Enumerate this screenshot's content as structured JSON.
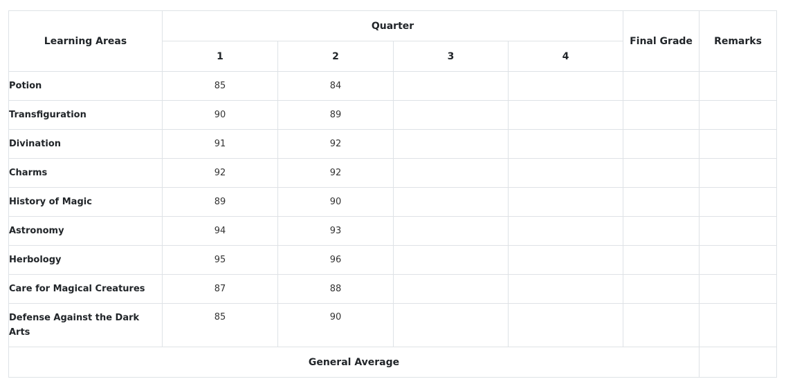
{
  "table": {
    "headers": {
      "learning_areas": "Learning Areas",
      "quarter": "Quarter",
      "quarters": [
        "1",
        "2",
        "3",
        "4"
      ],
      "final_grade": "Final Grade",
      "remarks": "Remarks"
    },
    "rows": [
      {
        "subject": "Potion",
        "q1": "85",
        "q2": "84",
        "q3": "",
        "q4": "",
        "final": "",
        "remarks": ""
      },
      {
        "subject": "Transfiguration",
        "q1": "90",
        "q2": "89",
        "q3": "",
        "q4": "",
        "final": "",
        "remarks": ""
      },
      {
        "subject": "Divination",
        "q1": "91",
        "q2": "92",
        "q3": "",
        "q4": "",
        "final": "",
        "remarks": ""
      },
      {
        "subject": "Charms",
        "q1": "92",
        "q2": "92",
        "q3": "",
        "q4": "",
        "final": "",
        "remarks": ""
      },
      {
        "subject": "History of Magic",
        "q1": "89",
        "q2": "90",
        "q3": "",
        "q4": "",
        "final": "",
        "remarks": ""
      },
      {
        "subject": "Astronomy",
        "q1": "94",
        "q2": "93",
        "q3": "",
        "q4": "",
        "final": "",
        "remarks": ""
      },
      {
        "subject": "Herbology",
        "q1": "95",
        "q2": "96",
        "q3": "",
        "q4": "",
        "final": "",
        "remarks": ""
      },
      {
        "subject": "Care for Magical Creatures",
        "q1": "87",
        "q2": "88",
        "q3": "",
        "q4": "",
        "final": "",
        "remarks": ""
      },
      {
        "subject": "Defense Against the Dark Arts",
        "q1": "85",
        "q2": "90",
        "q3": "",
        "q4": "",
        "final": "",
        "remarks": ""
      }
    ],
    "footer": {
      "general_average_label": "General Average",
      "general_average_value": ""
    }
  }
}
